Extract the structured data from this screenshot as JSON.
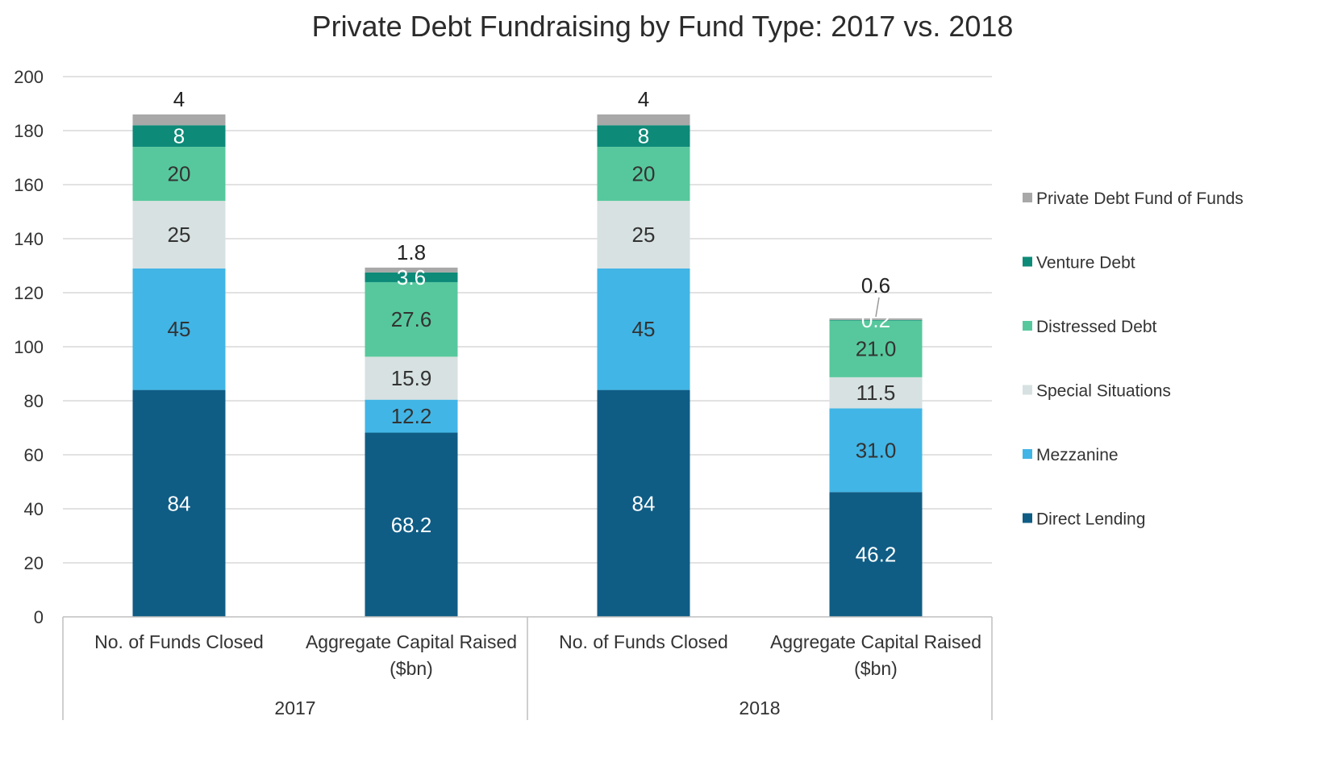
{
  "chart_data": {
    "type": "bar",
    "stacked": true,
    "title": "Private Debt Fundraising by Fund Type: 2017 vs. 2018",
    "xlabel": "",
    "ylabel": "",
    "ylim": [
      0,
      200
    ],
    "yticks": [
      0,
      20,
      40,
      60,
      80,
      100,
      120,
      140,
      160,
      180,
      200
    ],
    "grid": true,
    "legend_position": "right",
    "groups": [
      {
        "label": "2017",
        "categories": [
          "No. of Funds Closed",
          "Aggregate Capital Raised ($bn)"
        ]
      },
      {
        "label": "2018",
        "categories": [
          "No. of Funds Closed",
          "Aggregate Capital Raised ($bn)"
        ]
      }
    ],
    "categories": [
      [
        "No. of Funds Closed"
      ],
      [
        "Aggregate Capital Raised",
        "($bn)"
      ],
      [
        "No. of Funds Closed"
      ],
      [
        "Aggregate Capital Raised",
        "($bn)"
      ]
    ],
    "series": [
      {
        "name": "Direct Lending",
        "color": "#0f5d85",
        "values": [
          84,
          68.2,
          84,
          46.2
        ],
        "labels": [
          "84",
          "68.2",
          "84",
          "46.2"
        ]
      },
      {
        "name": "Mezzanine",
        "color": "#41b5e6",
        "values": [
          45,
          12.2,
          45,
          31.0
        ],
        "labels": [
          "45",
          "12.2",
          "45",
          "31.0"
        ]
      },
      {
        "name": "Special Situations",
        "color": "#d7e1e1",
        "values": [
          25,
          15.9,
          25,
          11.5
        ],
        "labels": [
          "25",
          "15.9",
          "25",
          "11.5"
        ]
      },
      {
        "name": "Distressed Debt",
        "color": "#57c89d",
        "values": [
          20,
          27.6,
          20,
          21.0
        ],
        "labels": [
          "20",
          "27.6",
          "20",
          "21.0"
        ]
      },
      {
        "name": "Venture Debt",
        "color": "#0d8a78",
        "values": [
          8,
          3.6,
          8,
          0.2
        ],
        "labels": [
          "8",
          "3.6",
          "8",
          "0.2"
        ]
      },
      {
        "name": "Private Debt Fund of Funds",
        "color": "#a8a8a8",
        "values": [
          4,
          1.8,
          4,
          0.6
        ],
        "labels": [
          "4",
          "1.8",
          "4",
          "0.6"
        ]
      }
    ]
  }
}
